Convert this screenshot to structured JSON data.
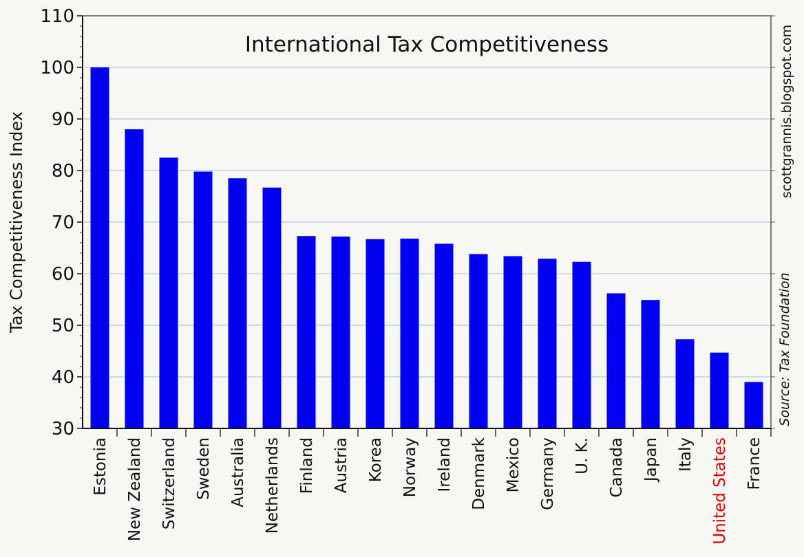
{
  "chart_data": {
    "type": "bar",
    "title": "International Tax Competitiveness",
    "ylabel": "Tax Competitiveness Index",
    "xlabel": "",
    "ylim": [
      30,
      110
    ],
    "yticks": [
      30,
      40,
      50,
      60,
      70,
      80,
      90,
      100,
      110
    ],
    "grid": true,
    "categories": [
      "Estonia",
      "New Zealand",
      "Switzerland",
      "Sweden",
      "Australia",
      "Netherlands",
      "Finland",
      "Austria",
      "Korea",
      "Norway",
      "Ireland",
      "Denmark",
      "Mexico",
      "Germany",
      "U. K.",
      "Canada",
      "Japan",
      "Italy",
      "United States",
      "France"
    ],
    "values": [
      100,
      88.0,
      82.5,
      79.8,
      78.5,
      76.7,
      67.3,
      67.2,
      66.7,
      66.8,
      65.8,
      63.8,
      63.4,
      62.9,
      62.3,
      56.2,
      54.9,
      47.3,
      44.7,
      39.0
    ],
    "highlight_category": "United States",
    "bar_color": "#0000f0",
    "highlight_label_color": "#e00000",
    "gridline_color": "#a9bcd6",
    "annotations": {
      "watermark": "scottgrannis.blogspot.com",
      "source": "Source: Tax Foundation"
    }
  }
}
